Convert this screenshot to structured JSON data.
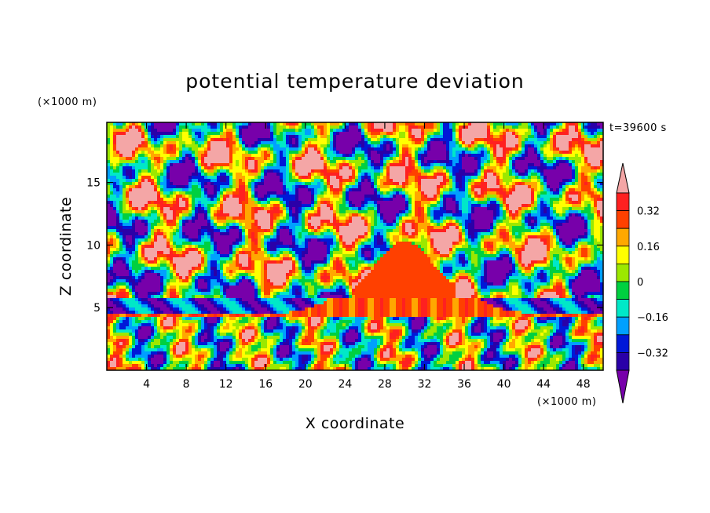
{
  "chart_data": {
    "type": "heatmap",
    "title": "potential temperature deviation",
    "xlabel": "X coordinate",
    "ylabel": "Z coordinate",
    "x_unit": "(×1000 m)",
    "y_unit": "(×1000 m)",
    "time_label": "t=39600 s",
    "xlim": [
      0,
      50
    ],
    "ylim": [
      0,
      19.8
    ],
    "x_ticks": [
      4,
      8,
      12,
      16,
      20,
      24,
      28,
      32,
      36,
      40,
      44,
      48
    ],
    "y_ticks": [
      5,
      10,
      15
    ],
    "colorbar": {
      "levels": [
        -0.4,
        -0.32,
        -0.24,
        -0.16,
        -0.08,
        0,
        0.08,
        0.16,
        0.24,
        0.32,
        0.4
      ],
      "tick_labels": [
        "0.32",
        "0.16",
        "0",
        "−0.16",
        "−0.32"
      ],
      "tick_values": [
        0.32,
        0.16,
        0,
        -0.16,
        -0.32
      ],
      "colors": [
        "#7700aa",
        "#2a00a8",
        "#0018d8",
        "#00a0ff",
        "#00e8c8",
        "#00d040",
        "#9ce800",
        "#ffff00",
        "#ffa800",
        "#ff4000",
        "#ff2020",
        "#f4a6a6"
      ],
      "extend": "both"
    }
  }
}
